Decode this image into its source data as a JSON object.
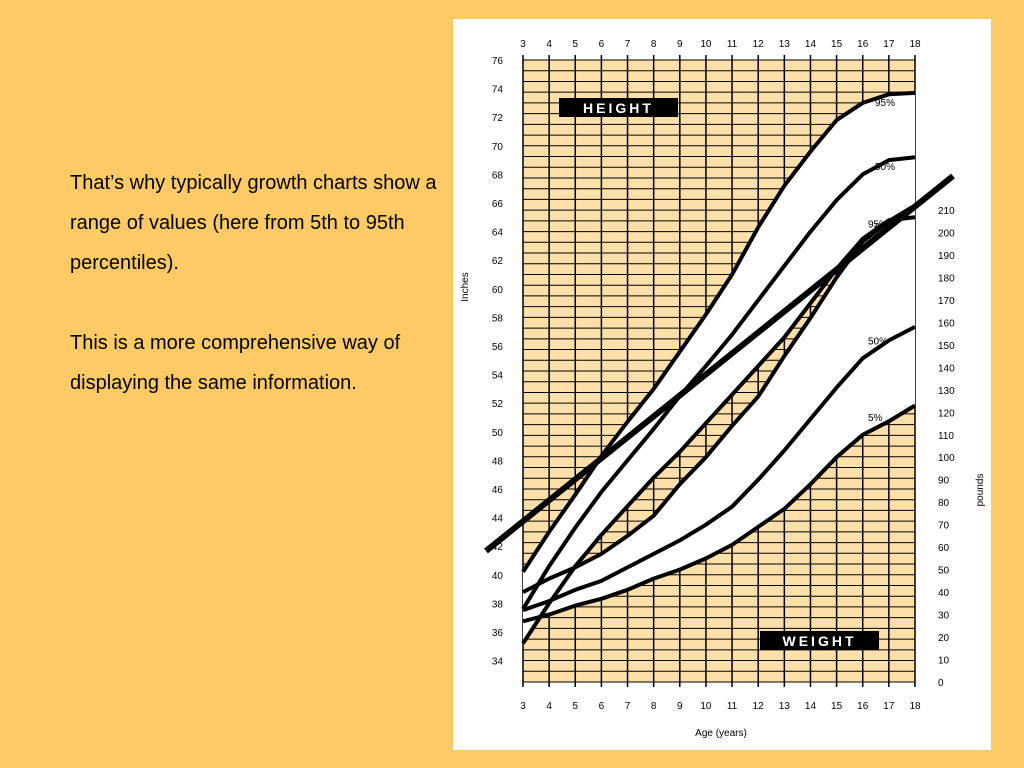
{
  "slide": {
    "paragraphs": [
      "That’s why typically growth charts show a range of values (here from 5th to 95th percentiles).",
      "This is a more comprehensive way of displaying the same information."
    ]
  },
  "colors": {
    "background": "#FECA66",
    "chart_fill": "#FDDFAA",
    "card": "#FFFFFF"
  },
  "chart_data": {
    "type": "line",
    "xlabel": "Age (years)",
    "ylabel_left": "Inches",
    "ylabel_right": "pounds",
    "xlim": [
      3,
      18
    ],
    "x_ticks": [
      3,
      4,
      5,
      6,
      7,
      8,
      9,
      10,
      11,
      12,
      13,
      14,
      15,
      16,
      17,
      18
    ],
    "height_axis": {
      "ylim": [
        34,
        76
      ],
      "ticks": [
        34,
        36,
        38,
        40,
        42,
        44,
        46,
        48,
        50,
        52,
        54,
        56,
        58,
        60,
        62,
        64,
        66,
        68,
        70,
        72,
        74,
        76
      ]
    },
    "weight_axis": {
      "ylim": [
        0,
        210
      ],
      "ticks": [
        0,
        10,
        20,
        30,
        40,
        50,
        60,
        70,
        80,
        90,
        100,
        110,
        120,
        130,
        140,
        150,
        160,
        170,
        180,
        190,
        200,
        210
      ]
    },
    "labels": {
      "height": "HEIGHT",
      "weight": "WEIGHT"
    },
    "height_series": [
      {
        "name": "95%",
        "x": [
          3,
          4,
          5,
          6,
          7,
          8,
          9,
          10,
          11,
          12,
          13,
          14,
          15,
          16,
          17,
          18
        ],
        "y": [
          40.2,
          43,
          45.6,
          48.3,
          50.7,
          53,
          55.6,
          58.2,
          61,
          64.3,
          67.2,
          69.6,
          71.8,
          73,
          73.6,
          73.7
        ]
      },
      {
        "name": "50%",
        "x": [
          3,
          4,
          5,
          6,
          7,
          8,
          9,
          10,
          11,
          12,
          13,
          14,
          15,
          16,
          17,
          18
        ],
        "y": [
          37.6,
          40.6,
          43.3,
          45.8,
          48,
          50.2,
          52.5,
          54.6,
          56.8,
          59.2,
          61.6,
          64,
          66.2,
          68,
          69,
          69.2
        ]
      },
      {
        "name": "5%",
        "x": [
          3,
          4,
          5,
          6,
          7,
          8,
          9,
          10,
          11,
          12,
          13,
          14,
          15,
          16,
          17,
          18
        ],
        "y": [
          35.2,
          38,
          40.6,
          42.8,
          44.8,
          46.8,
          48.6,
          50.6,
          52.6,
          54.6,
          56.6,
          59,
          61.4,
          63.5,
          64.8,
          65
        ]
      }
    ],
    "weight_series": [
      {
        "name": "95%",
        "x": [
          3,
          4,
          5,
          6,
          7,
          8,
          9,
          10,
          11,
          12,
          13,
          14,
          15,
          16,
          17,
          18
        ],
        "y": [
          40,
          46,
          51,
          57,
          65,
          74,
          88,
          100,
          114,
          127,
          145,
          162,
          180,
          196,
          205,
          212
        ]
      },
      {
        "name": "50%",
        "x": [
          3,
          4,
          5,
          6,
          7,
          8,
          9,
          10,
          11,
          12,
          13,
          14,
          15,
          16,
          17,
          18
        ],
        "y": [
          32,
          36,
          41,
          45,
          51,
          57,
          63,
          70,
          78,
          90,
          103,
          117,
          131,
          144,
          152,
          158
        ]
      },
      {
        "name": "5%",
        "x": [
          3,
          4,
          5,
          6,
          7,
          8,
          9,
          10,
          11,
          12,
          13,
          14,
          15,
          16,
          17,
          18
        ],
        "y": [
          27,
          30,
          34,
          37,
          41,
          46,
          50,
          55,
          61,
          69,
          77,
          88,
          100,
          110,
          116,
          123
        ]
      }
    ]
  }
}
